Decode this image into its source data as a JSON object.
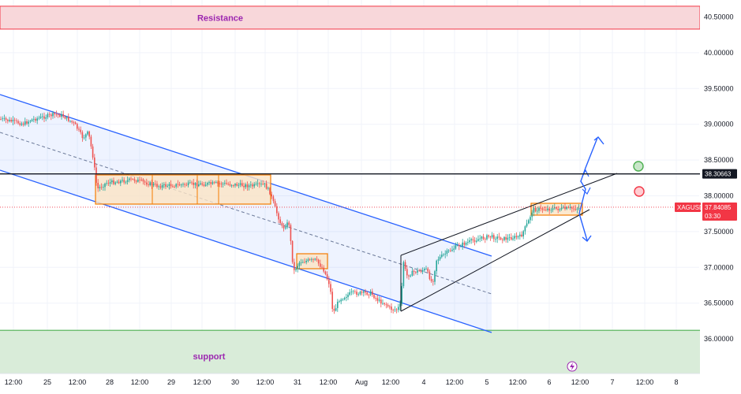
{
  "chart_data": {
    "type": "candlestick",
    "symbol": "XAGUSD",
    "ylim": [
      35.55,
      40.7
    ],
    "y_ticks": [
      "40.50000",
      "40.00000",
      "39.50000",
      "39.00000",
      "38.50000",
      "38.00000",
      "37.50000",
      "37.00000",
      "36.50000",
      "36.00000"
    ],
    "x_ticks": [
      "12:00",
      "25",
      "12:00",
      "28",
      "12:00",
      "29",
      "12:00",
      "30",
      "12:00",
      "31",
      "12:00",
      "Aug",
      "12:00",
      "4",
      "12:00",
      "5",
      "12:00",
      "6",
      "12:00",
      "7",
      "12:00",
      "8"
    ],
    "resistance": {
      "label": "Resistance",
      "low": 40.33,
      "high": 40.65
    },
    "support": {
      "label": "support",
      "low": 35.55,
      "high": 36.12
    },
    "key_level": {
      "value": 38.30663,
      "label": "38.30663"
    },
    "current": {
      "price": 37.84085,
      "price_label": "37.84085",
      "countdown": "03:30",
      "symbol": "XAGUSD"
    },
    "colors": {
      "up": "#26a69a",
      "down": "#ef5350",
      "channel": "#2962ff",
      "resistance_fill": "#f8d7da",
      "resistance_line": "#f23645",
      "support_fill": "#d9ecd9",
      "support_line": "#4caf50",
      "box_fill": "#fbe3c4",
      "box_line": "#f57c00",
      "wedge": "#131722",
      "arrow": "#2962ff",
      "target": "#4caf50",
      "stop": "#f23645",
      "price_badge": "#f23645"
    }
  }
}
